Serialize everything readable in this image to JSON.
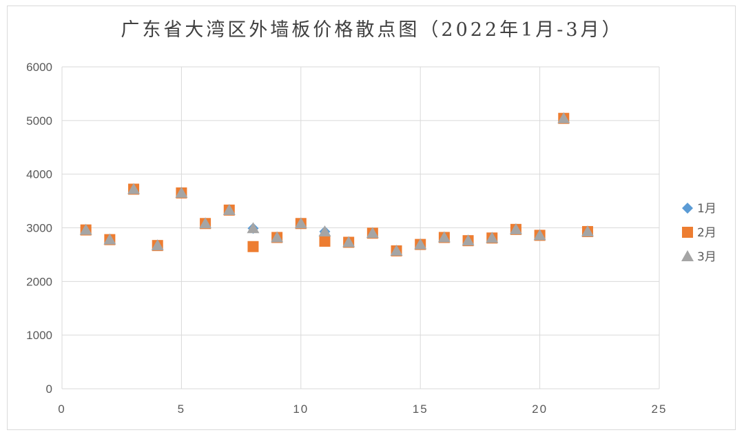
{
  "chart_data": {
    "type": "scatter",
    "title": "广东省大湾区外墙板价格散点图（2022年1月-3月）",
    "xlabel": "",
    "ylabel": "",
    "xlim": [
      0,
      25
    ],
    "ylim": [
      0,
      6000
    ],
    "x_ticks": [
      0,
      5,
      10,
      15,
      20,
      25
    ],
    "y_ticks": [
      0,
      1000,
      2000,
      3000,
      4000,
      5000,
      6000
    ],
    "grid": true,
    "legend_position": "right",
    "series": [
      {
        "name": "1月",
        "marker": "diamond",
        "color": "#5b9bd5",
        "points": [
          [
            1,
            2960
          ],
          [
            2,
            2780
          ],
          [
            3,
            3720
          ],
          [
            4,
            2670
          ],
          [
            5,
            3650
          ],
          [
            6,
            3080
          ],
          [
            7,
            3330
          ],
          [
            8,
            2990
          ],
          [
            9,
            2820
          ],
          [
            10,
            3080
          ],
          [
            11,
            2930
          ],
          [
            12,
            2730
          ],
          [
            13,
            2900
          ],
          [
            14,
            2570
          ],
          [
            15,
            2690
          ],
          [
            16,
            2820
          ],
          [
            17,
            2760
          ],
          [
            18,
            2810
          ],
          [
            19,
            2970
          ],
          [
            20,
            2860
          ],
          [
            21,
            5040
          ],
          [
            22,
            2930
          ]
        ]
      },
      {
        "name": "2月",
        "marker": "square",
        "color": "#ed7d31",
        "points": [
          [
            1,
            2960
          ],
          [
            2,
            2780
          ],
          [
            3,
            3720
          ],
          [
            4,
            2670
          ],
          [
            5,
            3650
          ],
          [
            6,
            3080
          ],
          [
            7,
            3330
          ],
          [
            8,
            2650
          ],
          [
            9,
            2820
          ],
          [
            10,
            3080
          ],
          [
            11,
            2750
          ],
          [
            12,
            2730
          ],
          [
            13,
            2900
          ],
          [
            14,
            2570
          ],
          [
            15,
            2690
          ],
          [
            16,
            2820
          ],
          [
            17,
            2760
          ],
          [
            18,
            2810
          ],
          [
            19,
            2970
          ],
          [
            20,
            2860
          ],
          [
            21,
            5040
          ],
          [
            22,
            2930
          ]
        ]
      },
      {
        "name": "3月",
        "marker": "triangle",
        "color": "#a5a5a5",
        "points": [
          [
            1,
            2960
          ],
          [
            2,
            2780
          ],
          [
            3,
            3720
          ],
          [
            4,
            2670
          ],
          [
            5,
            3650
          ],
          [
            6,
            3080
          ],
          [
            7,
            3330
          ],
          [
            8,
            2990
          ],
          [
            9,
            2820
          ],
          [
            10,
            3080
          ],
          [
            11,
            2930
          ],
          [
            12,
            2730
          ],
          [
            13,
            2900
          ],
          [
            14,
            2570
          ],
          [
            15,
            2690
          ],
          [
            16,
            2820
          ],
          [
            17,
            2760
          ],
          [
            18,
            2810
          ],
          [
            19,
            2970
          ],
          [
            20,
            2860
          ],
          [
            21,
            5040
          ],
          [
            22,
            2930
          ]
        ]
      }
    ]
  }
}
